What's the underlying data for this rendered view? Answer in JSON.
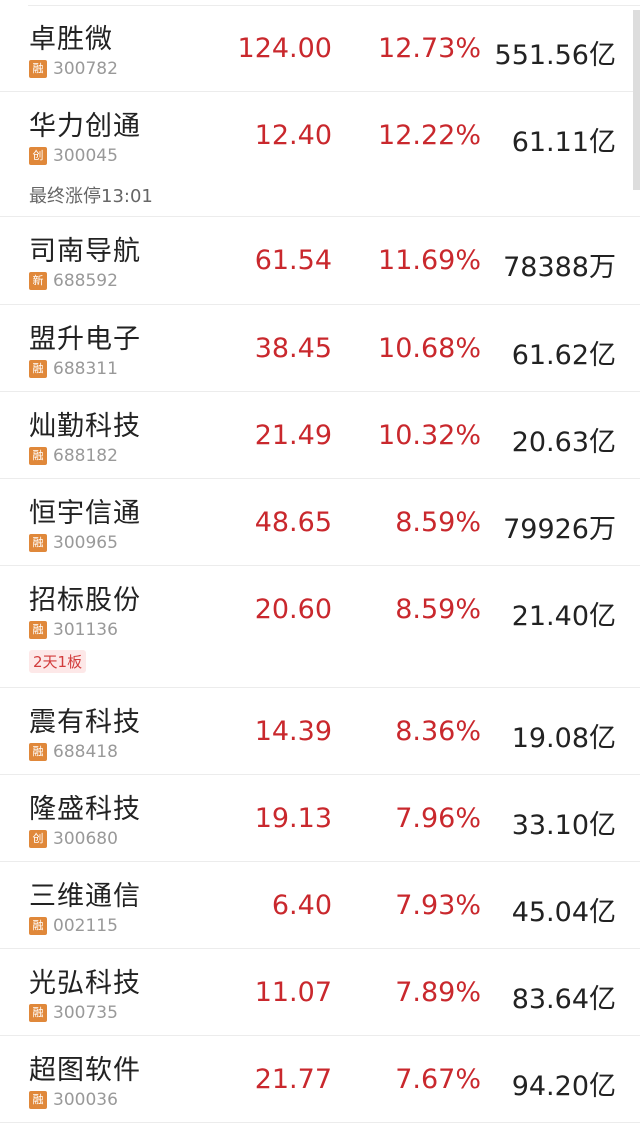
{
  "colors": {
    "up": "#c9282d",
    "badge": "#e0883a",
    "tag_bg": "#fde8e8"
  },
  "stocks": [
    {
      "name": "卓胜微",
      "badge": "融",
      "code": "300782",
      "price": "124.00",
      "change": "12.73%",
      "cap": "551.56亿"
    },
    {
      "name": "华力创通",
      "badge": "创",
      "code": "300045",
      "price": "12.40",
      "change": "12.22%",
      "cap": "61.11亿",
      "note": "最终涨停13:01"
    },
    {
      "name": "司南导航",
      "badge": "新",
      "code": "688592",
      "price": "61.54",
      "change": "11.69%",
      "cap": "78388万"
    },
    {
      "name": "盟升电子",
      "badge": "融",
      "code": "688311",
      "price": "38.45",
      "change": "10.68%",
      "cap": "61.62亿"
    },
    {
      "name": "灿勤科技",
      "badge": "融",
      "code": "688182",
      "price": "21.49",
      "change": "10.32%",
      "cap": "20.63亿"
    },
    {
      "name": "恒宇信通",
      "badge": "融",
      "code": "300965",
      "price": "48.65",
      "change": "8.59%",
      "cap": "79926万"
    },
    {
      "name": "招标股份",
      "badge": "融",
      "code": "301136",
      "price": "20.60",
      "change": "8.59%",
      "cap": "21.40亿",
      "tag": "2天1板"
    },
    {
      "name": "震有科技",
      "badge": "融",
      "code": "688418",
      "price": "14.39",
      "change": "8.36%",
      "cap": "19.08亿"
    },
    {
      "name": "隆盛科技",
      "badge": "创",
      "code": "300680",
      "price": "19.13",
      "change": "7.96%",
      "cap": "33.10亿"
    },
    {
      "name": "三维通信",
      "badge": "融",
      "code": "002115",
      "price": "6.40",
      "change": "7.93%",
      "cap": "45.04亿"
    },
    {
      "name": "光弘科技",
      "badge": "融",
      "code": "300735",
      "price": "11.07",
      "change": "7.89%",
      "cap": "83.64亿"
    },
    {
      "name": "超图软件",
      "badge": "融",
      "code": "300036",
      "price": "21.77",
      "change": "7.67%",
      "cap": "94.20亿"
    }
  ]
}
